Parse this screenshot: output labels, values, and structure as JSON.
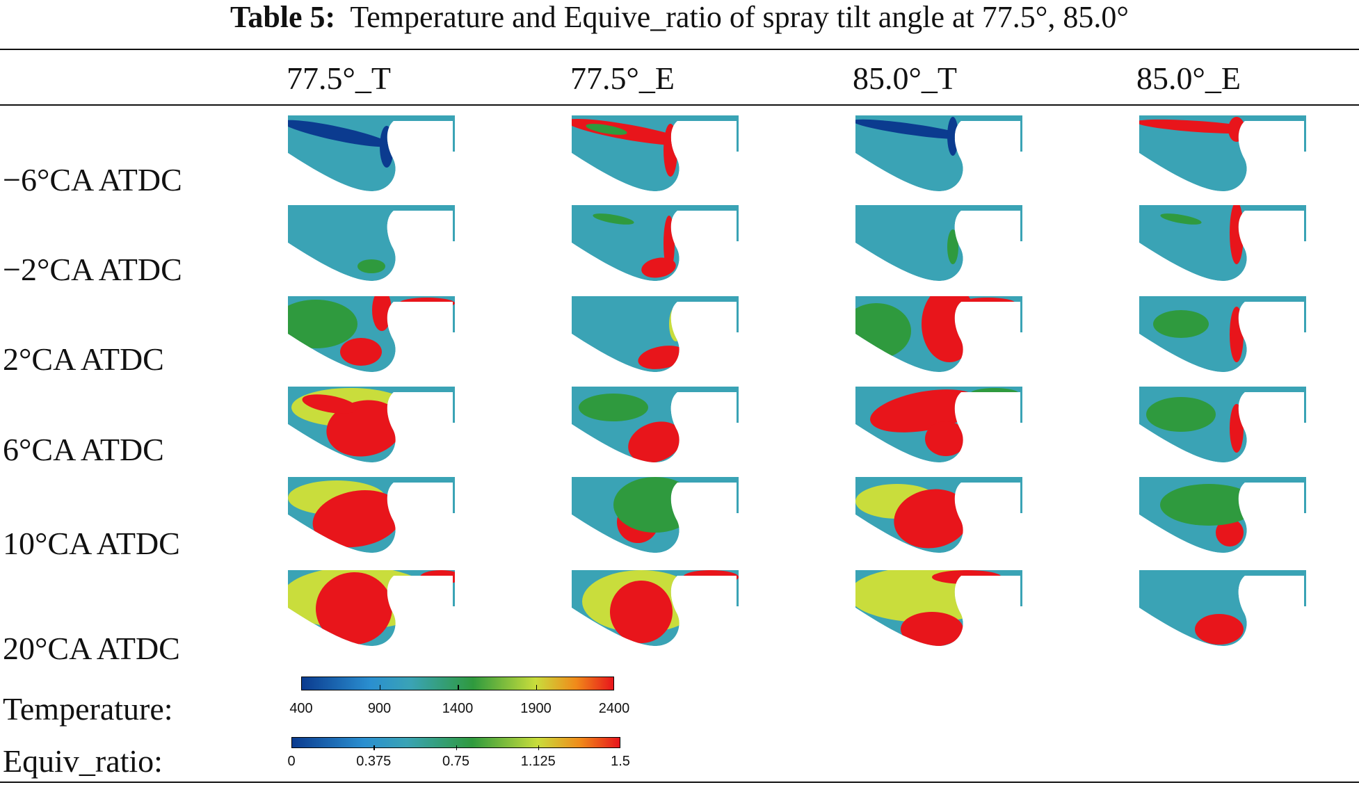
{
  "caption": {
    "label": "Table 5:",
    "text": "Temperature and Equive_ratio of spray tilt angle at 77.5°, 85.0°"
  },
  "columns": [
    "77.5°_T",
    "77.5°_E",
    "85.0°_T",
    "85.0°_E"
  ],
  "rows": [
    "−6°CA ATDC",
    "−2°CA ATDC",
    "2°CA ATDC",
    "6°CA ATDC",
    "10°CA ATDC",
    "20°CA ATDC"
  ],
  "legend": {
    "temperature": {
      "label": "Temperature:",
      "ticks": [
        "400",
        "900",
        "1400",
        "1900",
        "2400"
      ]
    },
    "equiv_ratio": {
      "label": "Equiv_ratio:",
      "ticks": [
        "0",
        "0.375",
        "0.75",
        "1.125",
        "1.5"
      ]
    }
  },
  "colors": {
    "background": "#3aa3b5",
    "cold": "#0b3b8f",
    "cool": "#2a8fd0",
    "mid": "#2f9a3e",
    "warm": "#c9dd3c",
    "hot": "#e8151b",
    "rule": "#111111"
  }
}
